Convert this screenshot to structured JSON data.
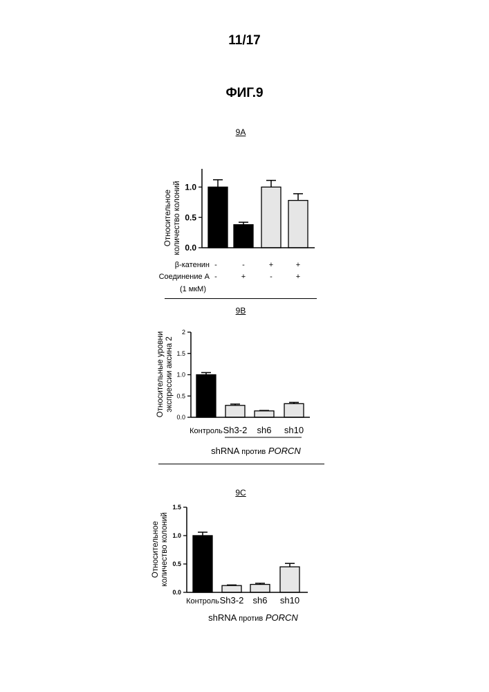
{
  "header": {
    "page_number": "11/17",
    "figure_title": "ФИГ.9"
  },
  "colors": {
    "black_bar": "#000000",
    "gray_bar": "#e6e6e6"
  },
  "charts": [
    {
      "panel_label": "9A",
      "ylabel_lines": [
        "Относительное",
        "количество колоний"
      ],
      "ytick_labels": [
        "0.0",
        "0.5",
        "1.0"
      ],
      "table_rows": [
        {
          "label": "β-катенин",
          "values": [
            "-",
            "-",
            "+",
            "+"
          ]
        },
        {
          "label": "Соединение A",
          "values": [
            "-",
            "+",
            "-",
            "+"
          ]
        }
      ],
      "note": "(1 мкМ)"
    },
    {
      "panel_label": "9B",
      "ylabel_lines": [
        "Относительные уровни",
        "экспрессии аксина 2"
      ],
      "ytick_labels": [
        "0.0",
        "0.5",
        "1.0",
        "1.5",
        "2"
      ],
      "category_labels": [
        "Контроль",
        "Sh3-2",
        "sh6",
        "sh10"
      ],
      "group_label_prefix": "shRNA",
      "group_label_word": "против",
      "group_label_gene": "PORCN"
    },
    {
      "panel_label": "9C",
      "ylabel_lines": [
        "Относительное",
        "количество колоний"
      ],
      "ytick_labels": [
        "0.0",
        "0.5",
        "1.0",
        "1.5"
      ],
      "category_labels": [
        "Контроль",
        "Sh3-2",
        "sh6",
        "sh10"
      ],
      "group_label_prefix": "shRNA",
      "group_label_word": "против",
      "group_label_gene": "PORCN"
    }
  ],
  "chart_data": [
    {
      "type": "bar",
      "categories": [
        "1",
        "2",
        "3",
        "4"
      ],
      "values": [
        1.0,
        0.38,
        1.0,
        0.78
      ],
      "errors": [
        0.12,
        0.04,
        0.11,
        0.11
      ],
      "bar_colors": [
        "black",
        "black",
        "gray",
        "gray"
      ],
      "ylim": [
        0,
        1.3
      ],
      "yticks": [
        0,
        0.5,
        1.0
      ]
    },
    {
      "type": "bar",
      "categories": [
        "Контроль",
        "Sh3-2",
        "sh6",
        "sh10"
      ],
      "values": [
        1.0,
        0.28,
        0.15,
        0.32
      ],
      "errors": [
        0.05,
        0.03,
        0.01,
        0.03
      ],
      "bar_colors": [
        "black",
        "gray",
        "gray",
        "gray"
      ],
      "ylim": [
        0,
        2.0
      ],
      "yticks": [
        0,
        0.5,
        1.0,
        1.5,
        2.0
      ]
    },
    {
      "type": "bar",
      "categories": [
        "Контроль",
        "Sh3-2",
        "sh6",
        "sh10"
      ],
      "values": [
        1.0,
        0.12,
        0.14,
        0.45
      ],
      "errors": [
        0.06,
        0.01,
        0.02,
        0.06
      ],
      "bar_colors": [
        "black",
        "gray",
        "gray",
        "gray"
      ],
      "ylim": [
        0,
        1.5
      ],
      "yticks": [
        0,
        0.5,
        1.0,
        1.5
      ]
    }
  ]
}
